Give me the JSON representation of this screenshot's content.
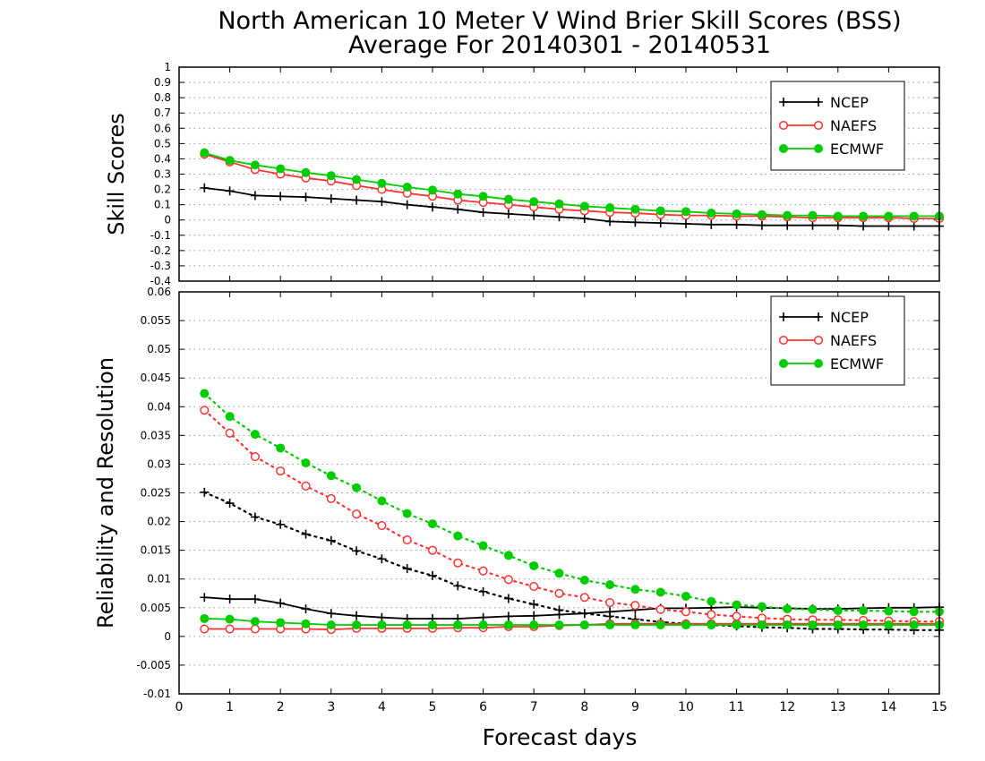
{
  "title_line1": "North American 10 Meter V Wind Brier Skill Scores (BSS)",
  "title_line2": "Average For 20140301 - 20140531",
  "xlabel": "Forecast days",
  "colors": {
    "NCEP": "#000000",
    "NAEFS": "#ff3333",
    "ECMWF": "#00cc00",
    "grid": "#999999"
  },
  "chart_data": [
    {
      "type": "line",
      "panel": "top",
      "ylabel": "Skill Scores",
      "xlim": [
        0,
        15
      ],
      "ylim": [
        -0.4,
        1
      ],
      "x_ticks": [
        "0",
        "1",
        "2",
        "3",
        "4",
        "5",
        "6",
        "7",
        "8",
        "9",
        "10",
        "11",
        "12",
        "13",
        "14",
        "15"
      ],
      "y_ticks": [
        "-0.4",
        "-0.3",
        "-0.2",
        "-0.1",
        "0",
        "0.1",
        "0.2",
        "0.3",
        "0.4",
        "0.5",
        "0.6",
        "0.7",
        "0.8",
        "0.9",
        "1"
      ],
      "grid": true,
      "legend_position": "top-right",
      "x": [
        0.5,
        1,
        1.5,
        2,
        2.5,
        3,
        3.5,
        4,
        4.5,
        5,
        5.5,
        6,
        6.5,
        7,
        7.5,
        8,
        8.5,
        9,
        9.5,
        10,
        10.5,
        11,
        11.5,
        12,
        12.5,
        13,
        13.5,
        14,
        14.5,
        15
      ],
      "series": [
        {
          "name": "NCEP",
          "marker": "plus",
          "style": "solid",
          "values": [
            0.21,
            0.19,
            0.16,
            0.155,
            0.15,
            0.14,
            0.13,
            0.12,
            0.1,
            0.085,
            0.07,
            0.05,
            0.04,
            0.03,
            0.02,
            0.01,
            -0.01,
            -0.015,
            -0.02,
            -0.025,
            -0.03,
            -0.03,
            -0.035,
            -0.035,
            -0.035,
            -0.035,
            -0.04,
            -0.04,
            -0.04,
            -0.04
          ]
        },
        {
          "name": "NAEFS",
          "marker": "open-circle",
          "style": "solid",
          "values": [
            0.43,
            0.38,
            0.33,
            0.3,
            0.275,
            0.255,
            0.225,
            0.2,
            0.175,
            0.155,
            0.13,
            0.115,
            0.1,
            0.085,
            0.07,
            0.06,
            0.05,
            0.045,
            0.035,
            0.03,
            0.03,
            0.025,
            0.025,
            0.02,
            0.015,
            0.015,
            0.015,
            0.015,
            0.01,
            0.01
          ]
        },
        {
          "name": "ECMWF",
          "marker": "filled-circle",
          "style": "solid",
          "values": [
            0.44,
            0.39,
            0.36,
            0.335,
            0.31,
            0.29,
            0.265,
            0.24,
            0.215,
            0.195,
            0.17,
            0.155,
            0.135,
            0.12,
            0.105,
            0.09,
            0.08,
            0.07,
            0.06,
            0.055,
            0.045,
            0.04,
            0.035,
            0.03,
            0.03,
            0.025,
            0.025,
            0.025,
            0.025,
            0.025
          ]
        }
      ]
    },
    {
      "type": "line",
      "panel": "bottom",
      "ylabel": "Reliability and Resolution",
      "xlim": [
        0,
        15
      ],
      "ylim": [
        -0.01,
        0.06
      ],
      "x_ticks": [
        "0",
        "1",
        "2",
        "3",
        "4",
        "5",
        "6",
        "7",
        "8",
        "9",
        "10",
        "11",
        "12",
        "13",
        "14",
        "15"
      ],
      "y_ticks": [
        "-0.01",
        "-0.005",
        "0",
        "0.005",
        "0.01",
        "0.015",
        "0.02",
        "0.025",
        "0.03",
        "0.035",
        "0.04",
        "0.045",
        "0.05",
        "0.055",
        "0.06"
      ],
      "grid": true,
      "legend_position": "top-right",
      "x": [
        0.5,
        1,
        1.5,
        2,
        2.5,
        3,
        3.5,
        4,
        4.5,
        5,
        5.5,
        6,
        6.5,
        7,
        7.5,
        8,
        8.5,
        9,
        9.5,
        10,
        10.5,
        11,
        11.5,
        12,
        12.5,
        13,
        13.5,
        14,
        14.5,
        15
      ],
      "series": [
        {
          "name": "NCEP",
          "marker": "plus",
          "style": "solid",
          "values": [
            0.0068,
            0.0065,
            0.0065,
            0.0058,
            0.0048,
            0.004,
            0.0036,
            0.0033,
            0.0031,
            0.0031,
            0.0031,
            0.0033,
            0.0035,
            0.0036,
            0.0038,
            0.004,
            0.0043,
            0.0046,
            0.0049,
            0.0049,
            0.005,
            0.0051,
            0.005,
            0.0049,
            0.0048,
            0.0048,
            0.0049,
            0.005,
            0.005,
            0.0051
          ]
        },
        {
          "name": "NCEP",
          "marker": "plus",
          "style": "dotted",
          "values": [
            0.0251,
            0.0232,
            0.0208,
            0.0195,
            0.0178,
            0.0167,
            0.0149,
            0.0135,
            0.0118,
            0.0106,
            0.0088,
            0.0078,
            0.0066,
            0.0056,
            0.0046,
            0.004,
            0.0035,
            0.003,
            0.0025,
            0.0022,
            0.002,
            0.0018,
            0.0016,
            0.0015,
            0.0013,
            0.0013,
            0.0012,
            0.0012,
            0.0011,
            0.0011
          ]
        },
        {
          "name": "NAEFS",
          "marker": "open-circle",
          "style": "solid",
          "values": [
            0.0013,
            0.0013,
            0.0013,
            0.0013,
            0.0013,
            0.0012,
            0.0014,
            0.0014,
            0.0014,
            0.0014,
            0.0015,
            0.0015,
            0.0017,
            0.0017,
            0.0019,
            0.002,
            0.0022,
            0.0022,
            0.0022,
            0.0022,
            0.0022,
            0.0022,
            0.0022,
            0.0022,
            0.0022,
            0.0022,
            0.0022,
            0.0022,
            0.0022,
            0.0022
          ]
        },
        {
          "name": "NAEFS",
          "marker": "open-circle",
          "style": "dotted",
          "values": [
            0.0394,
            0.0354,
            0.0313,
            0.0288,
            0.0262,
            0.024,
            0.0213,
            0.0193,
            0.0168,
            0.015,
            0.0128,
            0.0114,
            0.0099,
            0.0087,
            0.0075,
            0.0068,
            0.0059,
            0.0054,
            0.0047,
            0.0043,
            0.0038,
            0.0035,
            0.0032,
            0.003,
            0.0029,
            0.0029,
            0.0028,
            0.0027,
            0.0026,
            0.0026
          ]
        },
        {
          "name": "ECMWF",
          "marker": "filled-circle",
          "style": "solid",
          "values": [
            0.0031,
            0.003,
            0.0026,
            0.0024,
            0.0022,
            0.002,
            0.002,
            0.002,
            0.002,
            0.002,
            0.002,
            0.002,
            0.002,
            0.002,
            0.002,
            0.002,
            0.002,
            0.002,
            0.002,
            0.002,
            0.002,
            0.002,
            0.002,
            0.002,
            0.002,
            0.002,
            0.002,
            0.002,
            0.002,
            0.002
          ]
        },
        {
          "name": "ECMWF",
          "marker": "filled-circle",
          "style": "dotted",
          "values": [
            0.0423,
            0.0383,
            0.0352,
            0.0328,
            0.0302,
            0.028,
            0.0259,
            0.0236,
            0.0214,
            0.0196,
            0.0175,
            0.0158,
            0.0141,
            0.0123,
            0.011,
            0.0098,
            0.009,
            0.0082,
            0.0077,
            0.007,
            0.0061,
            0.0055,
            0.0052,
            0.0048,
            0.0047,
            0.0045,
            0.0045,
            0.0044,
            0.0043,
            0.0043
          ]
        }
      ]
    }
  ]
}
